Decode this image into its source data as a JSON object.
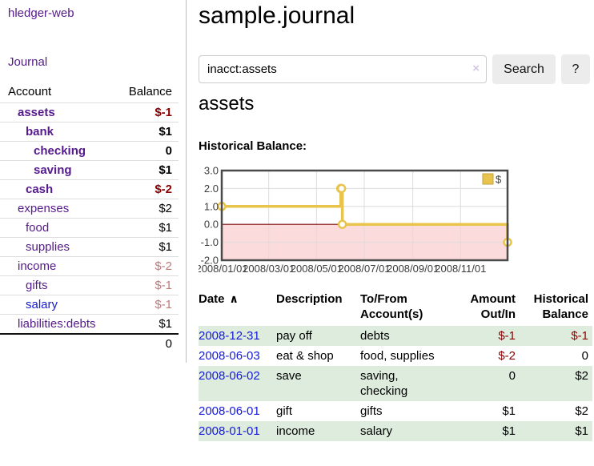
{
  "app": {
    "brand": "hledger-web"
  },
  "sidebar": {
    "journal_label": "Journal",
    "accounts": {
      "header_account": "Account",
      "header_balance": "Balance",
      "rows": [
        {
          "name": "assets",
          "balance": "$-1",
          "depth": 1,
          "bold": true,
          "negative": "strong",
          "link": "purple"
        },
        {
          "name": "bank",
          "balance": "$1",
          "depth": 2,
          "bold": true,
          "negative": null,
          "link": "purple"
        },
        {
          "name": "checking",
          "balance": "0",
          "depth": 3,
          "bold": true,
          "negative": null,
          "link": "purple"
        },
        {
          "name": "saving",
          "balance": "$1",
          "depth": 3,
          "bold": true,
          "negative": null,
          "link": "purple"
        },
        {
          "name": "cash",
          "balance": "$-2",
          "depth": 2,
          "bold": true,
          "negative": "strong",
          "link": "purple"
        },
        {
          "name": "expenses",
          "balance": "$2",
          "depth": 1,
          "bold": false,
          "negative": null,
          "link": "purple"
        },
        {
          "name": "food",
          "balance": "$1",
          "depth": 2,
          "bold": false,
          "negative": null,
          "link": "purple"
        },
        {
          "name": "supplies",
          "balance": "$1",
          "depth": 2,
          "bold": false,
          "negative": null,
          "link": "purple"
        },
        {
          "name": "income",
          "balance": "$-2",
          "depth": 1,
          "bold": false,
          "negative": "soft",
          "link": "purple"
        },
        {
          "name": "gifts",
          "balance": "$-1",
          "depth": 2,
          "bold": false,
          "negative": "soft",
          "link": "purple"
        },
        {
          "name": "salary",
          "balance": "$-1",
          "depth": 2,
          "bold": false,
          "negative": "soft",
          "link": "blue"
        },
        {
          "name": "liabilities:debts",
          "balance": "$1",
          "depth": 1,
          "bold": false,
          "negative": null,
          "link": "purple"
        }
      ],
      "total": "0"
    }
  },
  "header": {
    "title": "sample.journal"
  },
  "search": {
    "value": "inacct:assets",
    "clear_icon": "×",
    "button_label": "Search",
    "help_label": "?"
  },
  "account_view": {
    "title": "assets"
  },
  "chart_data": {
    "type": "line",
    "step": true,
    "title": "Historical Balance:",
    "legend": [
      {
        "label": "$",
        "color": "#e9c44d"
      }
    ],
    "series": [
      {
        "name": "$",
        "points": [
          {
            "date": "2008-01-01",
            "day": 0,
            "value": 1
          },
          {
            "date": "2008-06-01",
            "day": 152,
            "value": 2
          },
          {
            "date": "2008-06-02",
            "day": 153,
            "value": 2
          },
          {
            "date": "2008-06-03",
            "day": 154,
            "value": 0
          },
          {
            "date": "2008-12-31",
            "day": 365,
            "value": -1
          }
        ]
      }
    ],
    "x_ticks": [
      {
        "day": 0,
        "label": "2008/01/01"
      },
      {
        "day": 60,
        "label": "2008/03/01"
      },
      {
        "day": 121,
        "label": "2008/05/01"
      },
      {
        "day": 182,
        "label": "2008/07/01"
      },
      {
        "day": 244,
        "label": "2008/09/01"
      },
      {
        "day": 305,
        "label": "2008/11/01"
      }
    ],
    "y_ticks": [
      {
        "value": 3,
        "label": "3.0"
      },
      {
        "value": 2,
        "label": "2.0"
      },
      {
        "value": 1,
        "label": "1.0"
      },
      {
        "value": 0,
        "label": "0.0"
      },
      {
        "value": -1,
        "label": "-1.0"
      },
      {
        "value": -2,
        "label": "-2.0"
      }
    ],
    "ylim": [
      -2,
      3
    ],
    "xlim_days": [
      0,
      365
    ],
    "grid": true,
    "legend_position": "top-right"
  },
  "register": {
    "columns": [
      {
        "label": "Date",
        "sort": "asc",
        "align": "left"
      },
      {
        "label": "Description",
        "align": "left"
      },
      {
        "label": "To/From Account(s)",
        "align": "left"
      },
      {
        "label": "Amount Out/In",
        "align": "right"
      },
      {
        "label": "Historical Balance",
        "align": "right"
      }
    ],
    "sort_icon": "∧",
    "rows": [
      {
        "date": "2008-12-31",
        "description": "pay off",
        "accounts": "debts",
        "amount": "$-1",
        "amount_negative": true,
        "balance": "$-1",
        "balance_negative": true,
        "shaded": true
      },
      {
        "date": "2008-06-03",
        "description": "eat & shop",
        "accounts": "food, supplies",
        "amount": "$-2",
        "amount_negative": true,
        "balance": "0",
        "balance_negative": false,
        "shaded": false
      },
      {
        "date": "2008-06-02",
        "description": "save",
        "accounts": "saving, checking",
        "amount": "0",
        "amount_negative": false,
        "balance": "$2",
        "balance_negative": false,
        "shaded": true
      },
      {
        "date": "2008-06-01",
        "description": "gift",
        "accounts": "gifts",
        "amount": "$1",
        "amount_negative": false,
        "balance": "$2",
        "balance_negative": false,
        "shaded": false
      },
      {
        "date": "2008-01-01",
        "description": "income",
        "accounts": "salary",
        "amount": "$1",
        "amount_negative": false,
        "balance": "$1",
        "balance_negative": false,
        "shaded": true
      }
    ]
  },
  "colors": {
    "link_purple": "#551a8b",
    "link_blue": "#1519d9",
    "negative_strong": "#8b0000",
    "negative_soft": "#bd7a7a",
    "row_shade_green": "#ddecdd",
    "chart_line_gold": "#e9c44d",
    "chart_negative_fill": "#fbdbdb",
    "chart_zero_line": "#7c0a0a",
    "chart_border": "#4a4a4a"
  }
}
